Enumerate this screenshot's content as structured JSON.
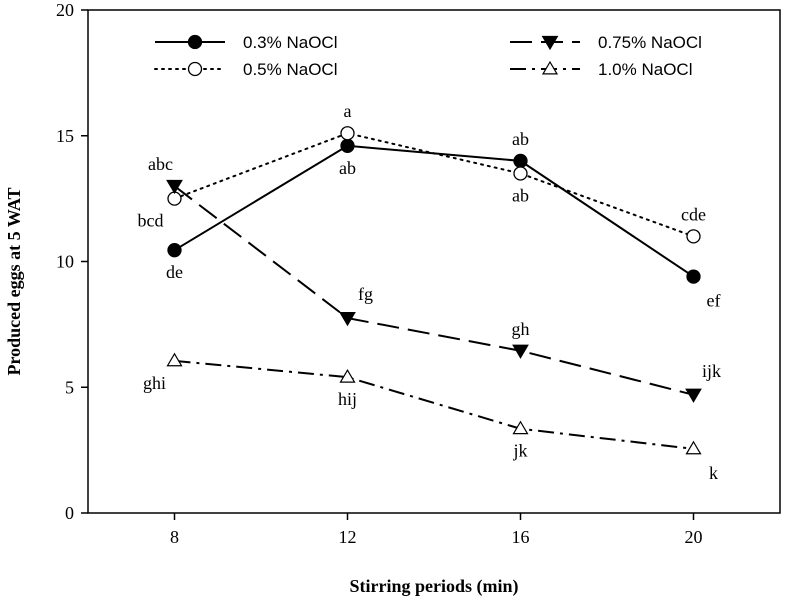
{
  "chart_data": {
    "type": "line",
    "title": "",
    "xlabel": "Stirring periods (min)",
    "ylabel": "Produced eggs at 5 WAT",
    "x": [
      8,
      12,
      16,
      20
    ],
    "xlim": [
      6,
      22
    ],
    "ylim": [
      0,
      20
    ],
    "xticks": [
      8,
      12,
      16,
      20
    ],
    "yticks": [
      0,
      5,
      10,
      15,
      20
    ],
    "grid": false,
    "legend_position": "top",
    "series": [
      {
        "name": "0.3% NaOCl",
        "values": [
          10.45,
          14.6,
          14.0,
          9.4
        ],
        "line": "solid",
        "marker": "circle-filled",
        "labels": [
          "de",
          "ab",
          "ab",
          "ef"
        ],
        "label_side": [
          "below",
          "below",
          "above",
          "below-right"
        ]
      },
      {
        "name": "0.5% NaOCl",
        "values": [
          12.5,
          15.1,
          13.5,
          11.0
        ],
        "line": "dotted",
        "marker": "circle-open",
        "labels": [
          "bcd",
          "a",
          "ab",
          "cde"
        ],
        "label_side": [
          "left-below",
          "above",
          "below",
          "above"
        ]
      },
      {
        "name": "0.75% NaOCl",
        "values": [
          13.0,
          7.75,
          6.45,
          4.7
        ],
        "line": "dashed",
        "marker": "triangle-down-filled",
        "labels": [
          "abc",
          "fg",
          "gh",
          "ijk"
        ],
        "label_side": [
          "above-left",
          "above-right",
          "above",
          "above-right"
        ]
      },
      {
        "name": "1.0% NaOCl",
        "values": [
          6.05,
          5.4,
          3.35,
          2.55
        ],
        "line": "dashdot",
        "marker": "triangle-up-open",
        "labels": [
          "ghi",
          "hij",
          "jk",
          "k"
        ],
        "label_side": [
          "below-left",
          "below",
          "below",
          "below-right"
        ]
      }
    ]
  }
}
